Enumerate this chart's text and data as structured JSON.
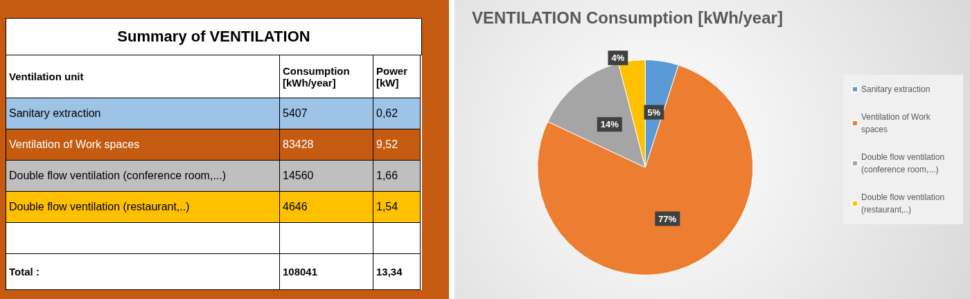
{
  "chart_data": [
    {
      "type": "other",
      "title": "Summary of VENTILATION",
      "annotations": [
        "Ventilation unit",
        "Consumption [kWh/year]",
        "Power [kW]",
        "Sanitary extraction",
        "5407",
        "0,62",
        "Ventilation of Work spaces",
        "83428",
        "9,52",
        "Double flow ventilation (conference room,...)",
        "14560",
        "1,66",
        "Double flow ventilation (restaurant,..)",
        "4646",
        "1,54",
        "Total :",
        "108041",
        "13,34"
      ],
      "colors": [
        "#9dc3e6",
        "#c55a11",
        "#bfbfbf",
        "#ffc000"
      ]
    },
    {
      "type": "pie",
      "title": "VENTILATION Consumption [kWh/year]",
      "categories": [
        "Sanitary extraction",
        "Ventilation of Work spaces",
        "Double flow ventilation (conference room,...)",
        "Double flow ventilation (restaurant,..)"
      ],
      "values": [
        5,
        77,
        14,
        4
      ],
      "colors": [
        "#5b9bd5",
        "#ed7d31",
        "#a5a5a5",
        "#ffc000"
      ],
      "value_labels": [
        "5%",
        "77%",
        "14%",
        "4%"
      ],
      "legend": "right"
    }
  ]
}
